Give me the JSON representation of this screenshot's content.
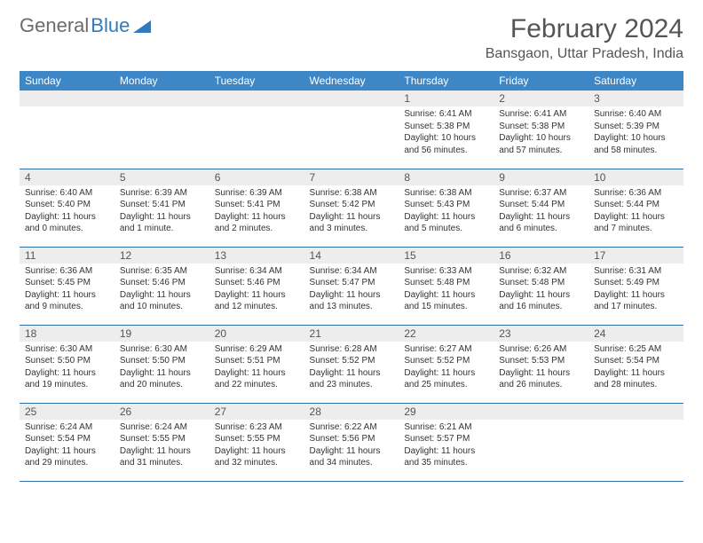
{
  "brand": {
    "word1": "General",
    "word2": "Blue"
  },
  "title": "February 2024",
  "location": "Bansgaon, Uttar Pradesh, India",
  "colors": {
    "header_bg": "#3d87c7",
    "header_text": "#ffffff",
    "daynum_bg": "#ededed",
    "row_border": "#2f6fa8",
    "body_text": "#333333",
    "title_text": "#555555",
    "logo_gray": "#6b6b6b",
    "logo_blue": "#2f7bbf"
  },
  "weekdays": [
    "Sunday",
    "Monday",
    "Tuesday",
    "Wednesday",
    "Thursday",
    "Friday",
    "Saturday"
  ],
  "weeks": [
    [
      null,
      null,
      null,
      null,
      {
        "n": "1",
        "sunrise": "6:41 AM",
        "sunset": "5:38 PM",
        "daylight": "10 hours and 56 minutes."
      },
      {
        "n": "2",
        "sunrise": "6:41 AM",
        "sunset": "5:38 PM",
        "daylight": "10 hours and 57 minutes."
      },
      {
        "n": "3",
        "sunrise": "6:40 AM",
        "sunset": "5:39 PM",
        "daylight": "10 hours and 58 minutes."
      }
    ],
    [
      {
        "n": "4",
        "sunrise": "6:40 AM",
        "sunset": "5:40 PM",
        "daylight": "11 hours and 0 minutes."
      },
      {
        "n": "5",
        "sunrise": "6:39 AM",
        "sunset": "5:41 PM",
        "daylight": "11 hours and 1 minute."
      },
      {
        "n": "6",
        "sunrise": "6:39 AM",
        "sunset": "5:41 PM",
        "daylight": "11 hours and 2 minutes."
      },
      {
        "n": "7",
        "sunrise": "6:38 AM",
        "sunset": "5:42 PM",
        "daylight": "11 hours and 3 minutes."
      },
      {
        "n": "8",
        "sunrise": "6:38 AM",
        "sunset": "5:43 PM",
        "daylight": "11 hours and 5 minutes."
      },
      {
        "n": "9",
        "sunrise": "6:37 AM",
        "sunset": "5:44 PM",
        "daylight": "11 hours and 6 minutes."
      },
      {
        "n": "10",
        "sunrise": "6:36 AM",
        "sunset": "5:44 PM",
        "daylight": "11 hours and 7 minutes."
      }
    ],
    [
      {
        "n": "11",
        "sunrise": "6:36 AM",
        "sunset": "5:45 PM",
        "daylight": "11 hours and 9 minutes."
      },
      {
        "n": "12",
        "sunrise": "6:35 AM",
        "sunset": "5:46 PM",
        "daylight": "11 hours and 10 minutes."
      },
      {
        "n": "13",
        "sunrise": "6:34 AM",
        "sunset": "5:46 PM",
        "daylight": "11 hours and 12 minutes."
      },
      {
        "n": "14",
        "sunrise": "6:34 AM",
        "sunset": "5:47 PM",
        "daylight": "11 hours and 13 minutes."
      },
      {
        "n": "15",
        "sunrise": "6:33 AM",
        "sunset": "5:48 PM",
        "daylight": "11 hours and 15 minutes."
      },
      {
        "n": "16",
        "sunrise": "6:32 AM",
        "sunset": "5:48 PM",
        "daylight": "11 hours and 16 minutes."
      },
      {
        "n": "17",
        "sunrise": "6:31 AM",
        "sunset": "5:49 PM",
        "daylight": "11 hours and 17 minutes."
      }
    ],
    [
      {
        "n": "18",
        "sunrise": "6:30 AM",
        "sunset": "5:50 PM",
        "daylight": "11 hours and 19 minutes."
      },
      {
        "n": "19",
        "sunrise": "6:30 AM",
        "sunset": "5:50 PM",
        "daylight": "11 hours and 20 minutes."
      },
      {
        "n": "20",
        "sunrise": "6:29 AM",
        "sunset": "5:51 PM",
        "daylight": "11 hours and 22 minutes."
      },
      {
        "n": "21",
        "sunrise": "6:28 AM",
        "sunset": "5:52 PM",
        "daylight": "11 hours and 23 minutes."
      },
      {
        "n": "22",
        "sunrise": "6:27 AM",
        "sunset": "5:52 PM",
        "daylight": "11 hours and 25 minutes."
      },
      {
        "n": "23",
        "sunrise": "6:26 AM",
        "sunset": "5:53 PM",
        "daylight": "11 hours and 26 minutes."
      },
      {
        "n": "24",
        "sunrise": "6:25 AM",
        "sunset": "5:54 PM",
        "daylight": "11 hours and 28 minutes."
      }
    ],
    [
      {
        "n": "25",
        "sunrise": "6:24 AM",
        "sunset": "5:54 PM",
        "daylight": "11 hours and 29 minutes."
      },
      {
        "n": "26",
        "sunrise": "6:24 AM",
        "sunset": "5:55 PM",
        "daylight": "11 hours and 31 minutes."
      },
      {
        "n": "27",
        "sunrise": "6:23 AM",
        "sunset": "5:55 PM",
        "daylight": "11 hours and 32 minutes."
      },
      {
        "n": "28",
        "sunrise": "6:22 AM",
        "sunset": "5:56 PM",
        "daylight": "11 hours and 34 minutes."
      },
      {
        "n": "29",
        "sunrise": "6:21 AM",
        "sunset": "5:57 PM",
        "daylight": "11 hours and 35 minutes."
      },
      null,
      null
    ]
  ],
  "labels": {
    "sunrise": "Sunrise:",
    "sunset": "Sunset:",
    "daylight": "Daylight:"
  }
}
